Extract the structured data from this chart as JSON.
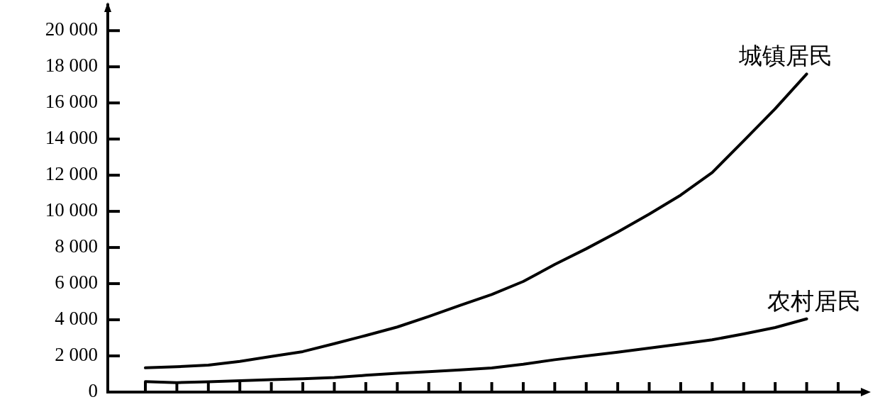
{
  "chart_data": {
    "type": "line",
    "categories": [
      null,
      null,
      null,
      null,
      null,
      null,
      null,
      null,
      null,
      null,
      null,
      null,
      null,
      null,
      null,
      null,
      null,
      null,
      null,
      null,
      null,
      null,
      null
    ],
    "ylim": [
      0,
      21500
    ],
    "yticks": [
      0,
      {
        "value": 2000,
        "label": "2 000"
      },
      {
        "value": 4000,
        "label": "4 000"
      },
      {
        "value": 6000,
        "label": "6 000"
      },
      {
        "value": 8000,
        "label": "8 000"
      },
      {
        "value": 10000,
        "label": "10 000"
      },
      {
        "value": 12000,
        "label": "12 000"
      },
      {
        "value": 14000,
        "label": "14 000"
      },
      {
        "value": 16000,
        "label": "16 000"
      },
      {
        "value": 18000,
        "label": "18 000"
      },
      {
        "value": 20000,
        "label": "20 000"
      }
    ],
    "series": [
      {
        "name": "城镇居民",
        "color": "#000000",
        "values": [
          1340,
          1400,
          1490,
          1700,
          1970,
          2240,
          2680,
          3130,
          3600,
          4180,
          4800,
          5400,
          6120,
          7060,
          7930,
          8860,
          9850,
          10900,
          12150,
          13900,
          15680,
          17600,
          null
        ]
      },
      {
        "name": "农村居民",
        "color": "#000000",
        "values": [
          580,
          520,
          570,
          630,
          690,
          740,
          800,
          930,
          1040,
          1130,
          1230,
          1330,
          1540,
          1790,
          2000,
          2210,
          2430,
          2660,
          2890,
          3220,
          3570,
          4050,
          null
        ]
      }
    ]
  }
}
